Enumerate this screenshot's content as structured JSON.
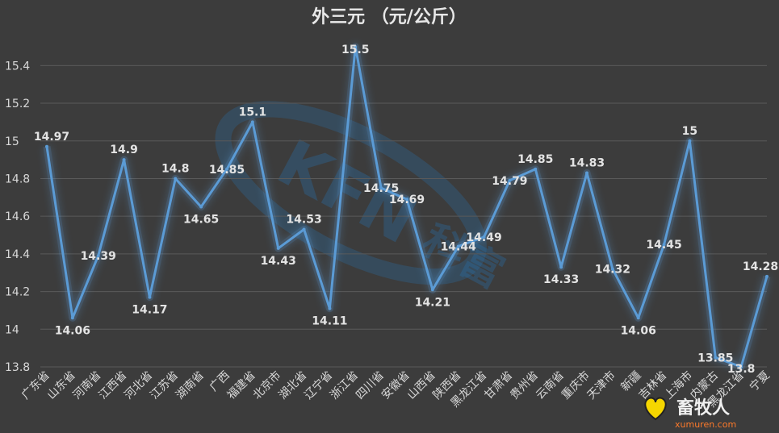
{
  "chart_data": {
    "type": "line",
    "title": "外三元 （元/公斤）",
    "xlabel": "",
    "ylabel": "",
    "ylim": [
      13.8,
      15.5
    ],
    "yticks": [
      13.8,
      14,
      14.2,
      14.4,
      14.6,
      14.8,
      15,
      15.2,
      15.4
    ],
    "grid": true,
    "legend": "none",
    "categories": [
      "广东省",
      "山东省",
      "河南省",
      "江西省",
      "河北省",
      "江苏省",
      "湖南省",
      "广西",
      "福建省",
      "北京市",
      "湖北省",
      "辽宁省",
      "浙江省",
      "四川省",
      "安徽省",
      "山西省",
      "陕西省",
      "黑龙江省",
      "甘肃省",
      "贵州省",
      "云南省",
      "重庆市",
      "天津市",
      "新疆",
      "吉林省",
      "上海市",
      "内蒙古",
      "黑龙江省",
      "宁夏"
    ],
    "values": [
      14.97,
      14.06,
      14.39,
      14.9,
      14.17,
      14.8,
      14.65,
      14.85,
      15.1,
      14.43,
      14.53,
      14.11,
      15.5,
      14.75,
      14.69,
      14.21,
      14.44,
      14.49,
      14.79,
      14.85,
      14.33,
      14.83,
      14.32,
      14.06,
      14.45,
      15,
      13.85,
      13.8,
      14.28
    ],
    "line_color": "#5b9bd5"
  },
  "watermark": {
    "brand": "KFN",
    "brand_cn": "科富"
  },
  "logo": {
    "name": "畜牧人",
    "url": "xumuren.com"
  }
}
